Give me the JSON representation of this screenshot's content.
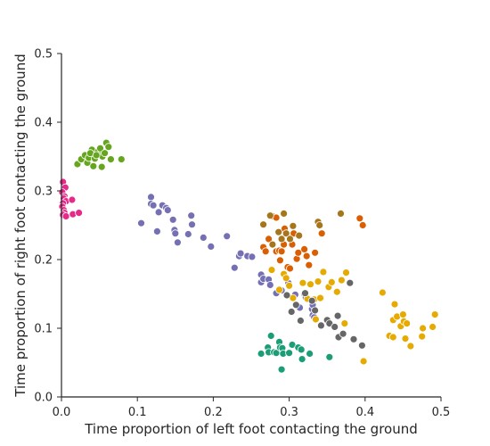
{
  "chart_data": {
    "type": "scatter",
    "xlabel": "Time proportion of left foot contacting the ground",
    "ylabel": "Time proportion of right foot contacting the ground",
    "xlim": [
      0.0,
      0.5
    ],
    "ylim": [
      0.0,
      0.5
    ],
    "xticks": [
      "0.0",
      "0.1",
      "0.2",
      "0.3",
      "0.4",
      "0.5"
    ],
    "yticks": [
      "0.0",
      "0.1",
      "0.2",
      "0.3",
      "0.4",
      "0.5"
    ],
    "grid": false,
    "series": [
      {
        "color": "#e7298a",
        "points": [
          [
            0.002,
            0.313
          ],
          [
            0.005,
            0.305
          ],
          [
            0.001,
            0.298
          ],
          [
            0.004,
            0.292
          ],
          [
            0.003,
            0.289
          ],
          [
            0.006,
            0.285
          ],
          [
            0.002,
            0.282
          ],
          [
            0.001,
            0.277
          ],
          [
            0.003,
            0.272
          ],
          [
            0.004,
            0.268
          ],
          [
            0.002,
            0.265
          ],
          [
            0.006,
            0.263
          ],
          [
            0.014,
            0.287
          ],
          [
            0.015,
            0.266
          ],
          [
            0.023,
            0.268
          ]
        ]
      },
      {
        "color": "#66a61e",
        "points": [
          [
            0.021,
            0.339
          ],
          [
            0.026,
            0.346
          ],
          [
            0.031,
            0.352
          ],
          [
            0.034,
            0.341
          ],
          [
            0.036,
            0.348
          ],
          [
            0.04,
            0.36
          ],
          [
            0.042,
            0.336
          ],
          [
            0.044,
            0.347
          ],
          [
            0.048,
            0.357
          ],
          [
            0.051,
            0.362
          ],
          [
            0.054,
            0.35
          ],
          [
            0.053,
            0.335
          ],
          [
            0.057,
            0.355
          ],
          [
            0.059,
            0.37
          ],
          [
            0.062,
            0.364
          ],
          [
            0.065,
            0.346
          ],
          [
            0.079,
            0.346
          ],
          [
            0.038,
            0.355
          ],
          [
            0.046,
            0.352
          ]
        ]
      },
      {
        "color": "#7570b3",
        "points": [
          [
            0.118,
            0.291
          ],
          [
            0.118,
            0.281
          ],
          [
            0.121,
            0.279
          ],
          [
            0.133,
            0.279
          ],
          [
            0.128,
            0.269
          ],
          [
            0.138,
            0.275
          ],
          [
            0.14,
            0.272
          ],
          [
            0.105,
            0.253
          ],
          [
            0.147,
            0.258
          ],
          [
            0.149,
            0.243
          ],
          [
            0.126,
            0.241
          ],
          [
            0.15,
            0.238
          ],
          [
            0.153,
            0.225
          ],
          [
            0.167,
            0.237
          ],
          [
            0.172,
            0.251
          ],
          [
            0.171,
            0.264
          ],
          [
            0.187,
            0.232
          ],
          [
            0.197,
            0.219
          ],
          [
            0.218,
            0.234
          ],
          [
            0.228,
            0.188
          ],
          [
            0.234,
            0.205
          ],
          [
            0.236,
            0.209
          ],
          [
            0.245,
            0.205
          ],
          [
            0.251,
            0.204
          ],
          [
            0.263,
            0.178
          ],
          [
            0.263,
            0.167
          ],
          [
            0.266,
            0.172
          ],
          [
            0.273,
            0.171
          ],
          [
            0.275,
            0.163
          ],
          [
            0.283,
            0.151
          ],
          [
            0.29,
            0.155
          ],
          [
            0.299,
            0.166
          ],
          [
            0.308,
            0.149
          ],
          [
            0.314,
            0.13
          ],
          [
            0.32,
            0.15
          ],
          [
            0.322,
            0.145
          ],
          [
            0.33,
            0.128
          ],
          [
            0.331,
            0.134
          ],
          [
            0.331,
            0.119
          ],
          [
            0.333,
            0.116
          ]
        ]
      },
      {
        "color": "#d95f02",
        "points": [
          [
            0.266,
            0.218
          ],
          [
            0.269,
            0.212
          ],
          [
            0.273,
            0.23
          ],
          [
            0.278,
            0.263
          ],
          [
            0.283,
            0.261
          ],
          [
            0.283,
            0.212
          ],
          [
            0.287,
            0.213
          ],
          [
            0.288,
            0.199
          ],
          [
            0.29,
            0.23
          ],
          [
            0.293,
            0.222
          ],
          [
            0.294,
            0.245
          ],
          [
            0.29,
            0.212
          ],
          [
            0.298,
            0.189
          ],
          [
            0.301,
            0.187
          ],
          [
            0.304,
            0.222
          ],
          [
            0.306,
            0.238
          ],
          [
            0.31,
            0.201
          ],
          [
            0.312,
            0.21
          ],
          [
            0.32,
            0.215
          ],
          [
            0.323,
            0.205
          ],
          [
            0.326,
            0.192
          ],
          [
            0.334,
            0.21
          ],
          [
            0.343,
            0.238
          ],
          [
            0.393,
            0.26
          ],
          [
            0.397,
            0.25
          ]
        ]
      },
      {
        "color": "#a6761d",
        "points": [
          [
            0.266,
            0.251
          ],
          [
            0.275,
            0.264
          ],
          [
            0.278,
            0.222
          ],
          [
            0.286,
            0.24
          ],
          [
            0.29,
            0.23
          ],
          [
            0.293,
            0.267
          ],
          [
            0.296,
            0.238
          ],
          [
            0.301,
            0.23
          ],
          [
            0.305,
            0.249
          ],
          [
            0.313,
            0.235
          ],
          [
            0.338,
            0.255
          ],
          [
            0.34,
            0.25
          ],
          [
            0.368,
            0.267
          ]
        ]
      },
      {
        "color": "#e6ab02",
        "points": [
          [
            0.277,
            0.185
          ],
          [
            0.287,
            0.156
          ],
          [
            0.293,
            0.179
          ],
          [
            0.296,
            0.173
          ],
          [
            0.3,
            0.162
          ],
          [
            0.305,
            0.144
          ],
          [
            0.318,
            0.166
          ],
          [
            0.324,
            0.143
          ],
          [
            0.328,
            0.164
          ],
          [
            0.333,
            0.142
          ],
          [
            0.338,
            0.168
          ],
          [
            0.342,
            0.144
          ],
          [
            0.345,
            0.182
          ],
          [
            0.352,
            0.16
          ],
          [
            0.356,
            0.167
          ],
          [
            0.363,
            0.153
          ],
          [
            0.369,
            0.17
          ],
          [
            0.373,
            0.107
          ],
          [
            0.375,
            0.181
          ],
          [
            0.398,
            0.052
          ],
          [
            0.423,
            0.152
          ],
          [
            0.432,
            0.089
          ],
          [
            0.437,
            0.087
          ],
          [
            0.437,
            0.112
          ],
          [
            0.439,
            0.135
          ],
          [
            0.442,
            0.117
          ],
          [
            0.447,
            0.103
          ],
          [
            0.45,
            0.12
          ],
          [
            0.451,
            0.11
          ],
          [
            0.453,
            0.085
          ],
          [
            0.455,
            0.107
          ],
          [
            0.46,
            0.074
          ],
          [
            0.475,
            0.088
          ],
          [
            0.476,
            0.1
          ],
          [
            0.489,
            0.102
          ],
          [
            0.492,
            0.12
          ],
          [
            0.341,
            0.144
          ],
          [
            0.335,
            0.113
          ]
        ]
      },
      {
        "color": "#666666",
        "points": [
          [
            0.297,
            0.148
          ],
          [
            0.303,
            0.124
          ],
          [
            0.309,
            0.134
          ],
          [
            0.315,
            0.111
          ],
          [
            0.321,
            0.151
          ],
          [
            0.33,
            0.14
          ],
          [
            0.334,
            0.126
          ],
          [
            0.342,
            0.104
          ],
          [
            0.35,
            0.112
          ],
          [
            0.353,
            0.107
          ],
          [
            0.36,
            0.102
          ],
          [
            0.364,
            0.118
          ],
          [
            0.365,
            0.087
          ],
          [
            0.371,
            0.092
          ],
          [
            0.38,
            0.166
          ],
          [
            0.385,
            0.084
          ],
          [
            0.396,
            0.075
          ]
        ]
      },
      {
        "color": "#1b9e77",
        "points": [
          [
            0.263,
            0.063
          ],
          [
            0.272,
            0.072
          ],
          [
            0.273,
            0.065
          ],
          [
            0.276,
            0.089
          ],
          [
            0.28,
            0.065
          ],
          [
            0.283,
            0.064
          ],
          [
            0.287,
            0.08
          ],
          [
            0.288,
            0.072
          ],
          [
            0.29,
            0.04
          ],
          [
            0.291,
            0.071
          ],
          [
            0.292,
            0.063
          ],
          [
            0.3,
            0.064
          ],
          [
            0.304,
            0.076
          ],
          [
            0.312,
            0.072
          ],
          [
            0.316,
            0.069
          ],
          [
            0.317,
            0.055
          ],
          [
            0.327,
            0.063
          ],
          [
            0.353,
            0.058
          ]
        ]
      }
    ]
  }
}
